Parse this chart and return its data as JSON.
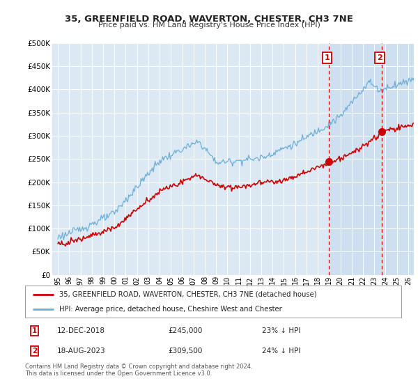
{
  "title": "35, GREENFIELD ROAD, WAVERTON, CHESTER, CH3 7NE",
  "subtitle": "Price paid vs. HM Land Registry's House Price Index (HPI)",
  "legend_line1": "35, GREENFIELD ROAD, WAVERTON, CHESTER, CH3 7NE (detached house)",
  "legend_line2": "HPI: Average price, detached house, Cheshire West and Chester",
  "annotation1_date": "12-DEC-2018",
  "annotation1_price": "£245,000",
  "annotation1_hpi": "23% ↓ HPI",
  "annotation2_date": "18-AUG-2023",
  "annotation2_price": "£309,500",
  "annotation2_hpi": "24% ↓ HPI",
  "footnote": "Contains HM Land Registry data © Crown copyright and database right 2024.\nThis data is licensed under the Open Government Licence v3.0.",
  "hpi_color": "#6baed6",
  "price_color": "#cc0000",
  "annotation_color": "#cc0000",
  "bg_color": "#dce9f5",
  "shade_color": "#c5d9ee",
  "grid_color": "#ffffff",
  "ylim": [
    0,
    500000
  ],
  "yticks": [
    0,
    50000,
    100000,
    150000,
    200000,
    250000,
    300000,
    350000,
    400000,
    450000,
    500000
  ],
  "sale1_x": 2018.958,
  "sale1_y": 245000,
  "sale2_x": 2023.633,
  "sale2_y": 309500,
  "xmin": 1995,
  "xmax": 2026
}
